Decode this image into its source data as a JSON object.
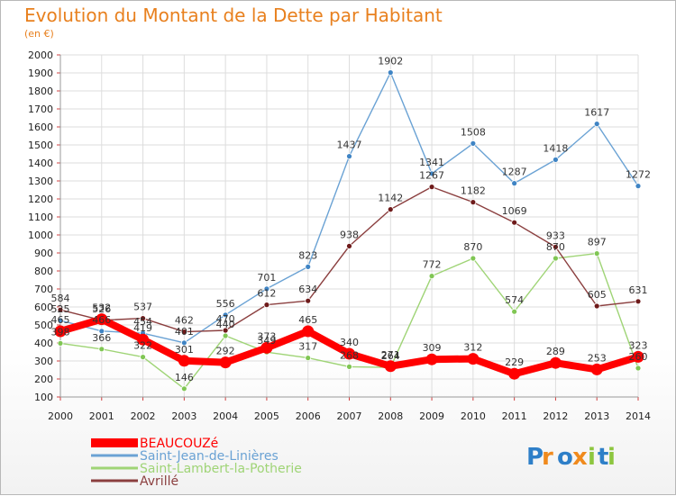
{
  "chart_data": {
    "type": "line",
    "title": "Evolution du Montant de la Dette par Habitant",
    "subtitle": "(en €)",
    "xlabel": "",
    "ylabel": "",
    "x": [
      "2000",
      "2001",
      "2002",
      "2003",
      "2004",
      "2005",
      "2006",
      "2007",
      "2008",
      "2009",
      "2010",
      "2011",
      "2012",
      "2013",
      "2014"
    ],
    "ylim": [
      100,
      2000
    ],
    "yticks": [
      "100",
      "200",
      "300",
      "400",
      "500",
      "600",
      "700",
      "800",
      "900",
      "1000",
      "1100",
      "1200",
      "1300",
      "1400",
      "1500",
      "1600",
      "1700",
      "1800",
      "1900",
      "2000"
    ],
    "grid": true,
    "legend_position": "bottom-left",
    "series": [
      {
        "name": "Saint-Jean-de-Linières",
        "color": "#6aa2d4",
        "marker": "#3f84c4",
        "values": [
          525,
          466,
          454,
          401,
          556,
          701,
          823,
          1437,
          1902,
          1341,
          1508,
          1287,
          1418,
          1617,
          1272
        ]
      },
      {
        "name": "Saint-Lambert-la-Potherie",
        "color": "#9fd476",
        "marker": "#80c654",
        "values": [
          398,
          366,
          322,
          146,
          440,
          349,
          317,
          268,
          264,
          772,
          870,
          574,
          870,
          897,
          260
        ]
      },
      {
        "name": "Avrillé",
        "color": "#8b3f3f",
        "marker": "#6e1a1a",
        "values": [
          584,
          526,
          537,
          462,
          470,
          612,
          634,
          938,
          1142,
          1267,
          1182,
          1069,
          933,
          605,
          631
        ]
      },
      {
        "name": "BEAUCOUZé",
        "color": "#ff0000",
        "marker": "#ff0000",
        "values": [
          465,
          532,
          419,
          301,
          292,
          373,
          465,
          340,
          271,
          309,
          312,
          229,
          289,
          253,
          323
        ]
      }
    ],
    "labels": {
      "Saint-Jean-de-Linières": [
        "525",
        "466",
        "454",
        "401",
        "556",
        "701",
        "823",
        "1437",
        "1902",
        "1341",
        "1508",
        "1287",
        "1418",
        "1617",
        "1272"
      ],
      "Saint-Lambert-la-Potherie": [
        "398",
        "366",
        "322",
        "146",
        "440",
        "349",
        "317",
        "268",
        "264",
        "772",
        "870",
        "574",
        "870",
        "897",
        "260"
      ],
      "Avrillé": [
        "584",
        "526",
        "537",
        "462",
        "470",
        "612",
        "634",
        "938",
        "1142",
        "1267",
        "1182",
        "1069",
        "933",
        "605",
        "631"
      ],
      "BEAUCOUZé": [
        "465",
        "532",
        "419",
        "301",
        "292",
        "373",
        "465",
        "340",
        "271",
        "309",
        "312",
        "229",
        "289",
        "253",
        "323"
      ]
    }
  },
  "legend": [
    {
      "name": "BEAUCOUZé",
      "color": "#ff0000"
    },
    {
      "name": "Saint-Jean-de-Linières",
      "color": "#6aa2d4"
    },
    {
      "name": "Saint-Lambert-la-Potherie",
      "color": "#9fd476"
    },
    {
      "name": "Avrillé",
      "color": "#8b3f3f"
    }
  ],
  "logo": {
    "text": "Proxiti"
  }
}
